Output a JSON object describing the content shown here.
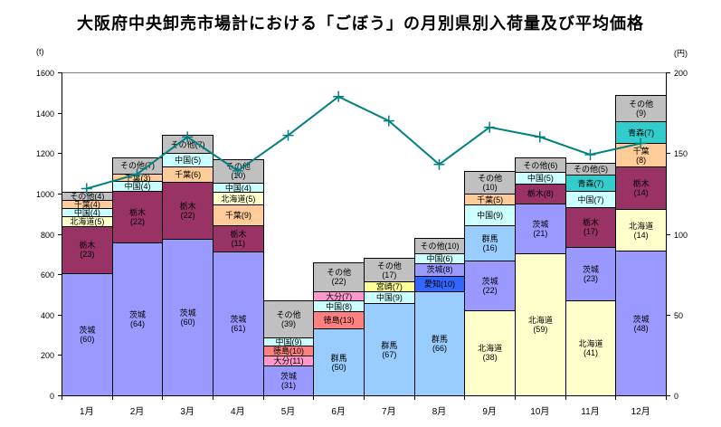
{
  "chart_data": {
    "type": "bar",
    "subtype": "stacked-bar-with-line-overlay",
    "title": "大阪府中央卸売市場計における「ごぼう」の月別県別入荷量及び平均価格",
    "categories": [
      "1月",
      "2月",
      "3月",
      "4月",
      "5月",
      "6月",
      "7月",
      "8月",
      "9月",
      "10月",
      "11月",
      "12月"
    ],
    "left_axis": {
      "unit": "(t)",
      "min": 0,
      "max": 1600,
      "tick_step": 200,
      "ticks": [
        0,
        200,
        400,
        600,
        800,
        1000,
        1200,
        1400,
        1600
      ]
    },
    "right_axis": {
      "unit": "(円)",
      "min": 0,
      "max": 200,
      "tick_step": 50,
      "ticks": [
        0,
        50,
        100,
        150,
        200
      ]
    },
    "grid": "top border line only",
    "legend_position": "none",
    "segment_labels_are_percent_share": true,
    "months": [
      {
        "month": "1月",
        "total_t": 1010,
        "segments": [
          {
            "name": "茨城",
            "pct": 60
          },
          {
            "name": "栃木",
            "pct": 23
          },
          {
            "name": "北海道",
            "pct": 5
          },
          {
            "name": "中国",
            "pct": 4
          },
          {
            "name": "千葉",
            "pct": 4
          },
          {
            "name": "その他",
            "pct": 4
          }
        ]
      },
      {
        "month": "2月",
        "total_t": 1180,
        "segments": [
          {
            "name": "茨城",
            "pct": 64
          },
          {
            "name": "栃木",
            "pct": 22
          },
          {
            "name": "中国",
            "pct": 4
          },
          {
            "name": "千葉",
            "pct": 3
          },
          {
            "name": "その他",
            "pct": 7
          }
        ]
      },
      {
        "month": "3月",
        "total_t": 1290,
        "segments": [
          {
            "name": "茨城",
            "pct": 60
          },
          {
            "name": "栃木",
            "pct": 22
          },
          {
            "name": "千葉",
            "pct": 6
          },
          {
            "name": "中国",
            "pct": 5
          },
          {
            "name": "その他",
            "pct": 7
          }
        ]
      },
      {
        "month": "4月",
        "total_t": 1170,
        "segments": [
          {
            "name": "茨城",
            "pct": 61
          },
          {
            "name": "栃木",
            "pct": 11
          },
          {
            "name": "千葉",
            "pct": 9
          },
          {
            "name": "北海道",
            "pct": 5
          },
          {
            "name": "中国",
            "pct": 4
          },
          {
            "name": "その他",
            "pct": 10
          }
        ]
      },
      {
        "month": "5月",
        "total_t": 470,
        "segments": [
          {
            "name": "茨城",
            "pct": 31
          },
          {
            "name": "大分",
            "pct": 11
          },
          {
            "name": "徳島",
            "pct": 10
          },
          {
            "name": "中国",
            "pct": 9
          },
          {
            "name": "その他",
            "pct": 39
          }
        ]
      },
      {
        "month": "6月",
        "total_t": 660,
        "segments": [
          {
            "name": "群馬",
            "pct": 50
          },
          {
            "name": "徳島",
            "pct": 13
          },
          {
            "name": "中国",
            "pct": 8
          },
          {
            "name": "大分",
            "pct": 7
          },
          {
            "name": "その他",
            "pct": 22
          }
        ]
      },
      {
        "month": "7月",
        "total_t": 680,
        "segments": [
          {
            "name": "群馬",
            "pct": 67
          },
          {
            "name": "中国",
            "pct": 9
          },
          {
            "name": "宮崎",
            "pct": 7
          },
          {
            "name": "その他",
            "pct": 17
          }
        ]
      },
      {
        "month": "8月",
        "total_t": 780,
        "segments": [
          {
            "name": "群馬",
            "pct": 66
          },
          {
            "name": "愛知",
            "pct": 10
          },
          {
            "name": "茨城",
            "pct": 8
          },
          {
            "name": "中国",
            "pct": 6
          },
          {
            "name": "その他",
            "pct": 10
          }
        ]
      },
      {
        "month": "9月",
        "total_t": 1110,
        "segments": [
          {
            "name": "北海道",
            "pct": 38
          },
          {
            "name": "茨城",
            "pct": 22
          },
          {
            "name": "群馬",
            "pct": 16
          },
          {
            "name": "中国",
            "pct": 9
          },
          {
            "name": "千葉",
            "pct": 5
          },
          {
            "name": "その他",
            "pct": 10
          }
        ]
      },
      {
        "month": "10月",
        "total_t": 1190,
        "segments": [
          {
            "name": "北海道",
            "pct": 59
          },
          {
            "name": "茨城",
            "pct": 21
          },
          {
            "name": "栃木",
            "pct": 8
          },
          {
            "name": "中国",
            "pct": 5
          },
          {
            "name": "その他",
            "pct": 6
          }
        ]
      },
      {
        "month": "11月",
        "total_t": 1150,
        "segments": [
          {
            "name": "北海道",
            "pct": 41
          },
          {
            "name": "茨城",
            "pct": 23
          },
          {
            "name": "栃木",
            "pct": 17
          },
          {
            "name": "中国",
            "pct": 7
          },
          {
            "name": "青森",
            "pct": 7
          },
          {
            "name": "その他",
            "pct": 5
          }
        ]
      },
      {
        "month": "12月",
        "total_t": 1490,
        "segments": [
          {
            "name": "茨城",
            "pct": 48
          },
          {
            "name": "北海道",
            "pct": 14
          },
          {
            "name": "栃木",
            "pct": 14
          },
          {
            "name": "千葉",
            "pct": 8
          },
          {
            "name": "青森",
            "pct": 7
          },
          {
            "name": "その他",
            "pct": 9
          }
        ]
      }
    ],
    "line": {
      "name": "平均価格",
      "axis": "right",
      "unit": "円",
      "color": "#008080",
      "values": [
        128,
        137,
        160,
        139,
        161,
        185,
        170,
        143,
        166,
        160,
        149,
        156
      ]
    },
    "colors": {
      "茨城": "#9999FF",
      "栃木": "#993366",
      "北海道": "#FFFFCC",
      "中国": "#CCFFFF",
      "千葉": "#FFCC99",
      "その他": "#C0C0C0",
      "群馬": "#99CCFF",
      "徳島": "#FF8080",
      "大分": "#FF99CC",
      "宮崎": "#FFFF99",
      "愛知": "#3366FF",
      "青森": "#33CCCC"
    }
  }
}
